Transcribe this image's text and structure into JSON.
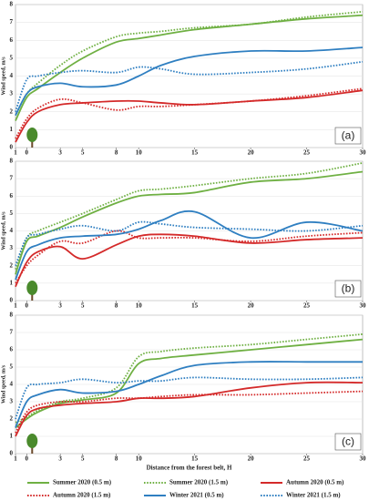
{
  "chart_data": [
    {
      "type": "line",
      "annotation": "(a)",
      "ylabel": "Wind speed, m/s",
      "x": [
        -1,
        0,
        1,
        3,
        5,
        8,
        10,
        12,
        15,
        20,
        25,
        30
      ],
      "xlim": [
        -1,
        30
      ],
      "xticks": [
        {
          "value": -1,
          "label": "1"
        },
        0,
        3,
        5,
        8,
        10,
        15,
        20,
        25,
        30
      ],
      "ylim": [
        0,
        8
      ],
      "yticks": [
        0,
        1,
        2,
        3,
        4,
        5,
        6,
        7,
        8
      ],
      "grid": true,
      "series": [
        {
          "color": "#6fb043",
          "style": "solid",
          "values": [
            1.5,
            2.8,
            3.3,
            4.2,
            5.0,
            5.9,
            6.1,
            6.3,
            6.6,
            6.9,
            7.2,
            7.4
          ]
        },
        {
          "color": "#6fb043",
          "style": "dotted",
          "values": [
            1.8,
            3.0,
            3.6,
            4.6,
            5.4,
            6.2,
            6.4,
            6.5,
            6.7,
            6.9,
            7.3,
            7.6
          ]
        },
        {
          "color": "#d42a2a",
          "style": "solid",
          "values": [
            0.3,
            1.4,
            2.0,
            2.4,
            2.5,
            2.6,
            2.6,
            2.5,
            2.4,
            2.6,
            2.8,
            3.2
          ]
        },
        {
          "color": "#d42a2a",
          "style": "dotted",
          "values": [
            0.5,
            1.6,
            2.2,
            2.7,
            2.5,
            2.1,
            2.3,
            2.3,
            2.4,
            2.6,
            2.9,
            3.3
          ]
        },
        {
          "color": "#2f7fc1",
          "style": "solid",
          "values": [
            1.8,
            3.0,
            3.4,
            3.6,
            3.4,
            3.5,
            4.0,
            4.6,
            5.1,
            5.4,
            5.4,
            5.6
          ]
        },
        {
          "color": "#2f7fc1",
          "style": "dotted",
          "values": [
            2.0,
            3.8,
            4.0,
            4.2,
            4.3,
            4.2,
            4.5,
            4.4,
            4.1,
            4.2,
            4.4,
            4.8
          ]
        }
      ]
    },
    {
      "type": "line",
      "annotation": "(b)",
      "ylabel": "Wind speed, m/s",
      "x": [
        -1,
        0,
        1,
        3,
        5,
        8,
        10,
        12,
        15,
        20,
        25,
        30
      ],
      "xlim": [
        -1,
        30
      ],
      "xticks": [
        {
          "value": -1,
          "label": "1"
        },
        0,
        3,
        5,
        8,
        10,
        15,
        20,
        25,
        30
      ],
      "ylim": [
        0,
        8
      ],
      "yticks": [
        0,
        1,
        2,
        3,
        4,
        5,
        6,
        7,
        8
      ],
      "grid": true,
      "series": [
        {
          "color": "#6fb043",
          "style": "solid",
          "values": [
            1.5,
            3.4,
            3.7,
            4.2,
            4.8,
            5.6,
            6.0,
            6.1,
            6.2,
            6.8,
            7.0,
            7.4
          ]
        },
        {
          "color": "#6fb043",
          "style": "dotted",
          "values": [
            1.8,
            3.6,
            4.0,
            4.5,
            5.0,
            5.8,
            6.3,
            6.4,
            6.6,
            7.0,
            7.3,
            7.9
          ]
        },
        {
          "color": "#d42a2a",
          "style": "solid",
          "values": [
            0.8,
            2.2,
            2.8,
            3.1,
            2.4,
            3.2,
            3.7,
            3.8,
            3.7,
            3.3,
            3.5,
            3.6
          ]
        },
        {
          "color": "#d42a2a",
          "style": "dotted",
          "values": [
            1.0,
            2.0,
            2.6,
            3.4,
            3.3,
            4.0,
            3.6,
            3.6,
            3.6,
            3.4,
            3.7,
            3.9
          ]
        },
        {
          "color": "#2f7fc1",
          "style": "solid",
          "values": [
            1.2,
            2.8,
            3.2,
            3.6,
            3.7,
            3.8,
            4.1,
            4.6,
            5.1,
            3.6,
            4.5,
            4.0
          ]
        },
        {
          "color": "#2f7fc1",
          "style": "dotted",
          "values": [
            2.0,
            3.6,
            3.8,
            4.1,
            4.3,
            4.0,
            4.5,
            4.4,
            4.2,
            4.1,
            4.0,
            4.3
          ]
        }
      ]
    },
    {
      "type": "line",
      "annotation": "(c)",
      "ylabel": "Wind speed, m/s",
      "xlabel": "Distance from the forest belt, H",
      "x": [
        -1,
        0,
        1,
        3,
        5,
        8,
        10,
        12,
        15,
        20,
        25,
        30
      ],
      "xlim": [
        -1,
        30
      ],
      "xticks": [
        {
          "value": -1,
          "label": "1"
        },
        0,
        3,
        5,
        8,
        10,
        15,
        20,
        25,
        30
      ],
      "ylim": [
        0,
        8
      ],
      "yticks": [
        0,
        1,
        2,
        3,
        4,
        5,
        6,
        7,
        8
      ],
      "grid": true,
      "series": [
        {
          "name": "Summer 2020 (0.5 m)",
          "color": "#6fb043",
          "style": "solid",
          "values": [
            1.5,
            2.0,
            2.4,
            2.9,
            3.1,
            3.5,
            5.2,
            5.5,
            5.7,
            6.0,
            6.3,
            6.6
          ]
        },
        {
          "name": "Summer 2020 (1.5 m)",
          "color": "#6fb043",
          "style": "dotted",
          "values": [
            1.8,
            2.1,
            2.5,
            3.0,
            3.2,
            3.8,
            5.6,
            5.9,
            6.1,
            6.3,
            6.6,
            6.9
          ]
        },
        {
          "name": "Autumn 2020 (0.5 m)",
          "color": "#d42a2a",
          "style": "solid",
          "values": [
            1.0,
            2.2,
            2.6,
            2.8,
            2.9,
            3.0,
            3.2,
            3.2,
            3.3,
            3.8,
            4.1,
            4.1
          ]
        },
        {
          "name": "Autumn 2020 (1.5 m)",
          "color": "#d42a2a",
          "style": "dotted",
          "values": [
            1.2,
            2.4,
            2.8,
            3.0,
            3.0,
            3.2,
            3.2,
            3.3,
            3.4,
            3.4,
            3.5,
            3.6
          ]
        },
        {
          "name": "Winter 2021 (0.5 m)",
          "color": "#2f7fc1",
          "style": "solid",
          "values": [
            1.5,
            3.0,
            3.4,
            3.7,
            3.5,
            3.6,
            4.0,
            4.5,
            5.1,
            5.3,
            5.3,
            5.3
          ]
        },
        {
          "name": "Winter 2021 (1.5 m)",
          "color": "#2f7fc1",
          "style": "dotted",
          "values": [
            2.0,
            3.8,
            4.0,
            4.1,
            4.3,
            4.1,
            4.2,
            4.2,
            4.4,
            4.3,
            4.3,
            4.4
          ]
        }
      ]
    }
  ]
}
